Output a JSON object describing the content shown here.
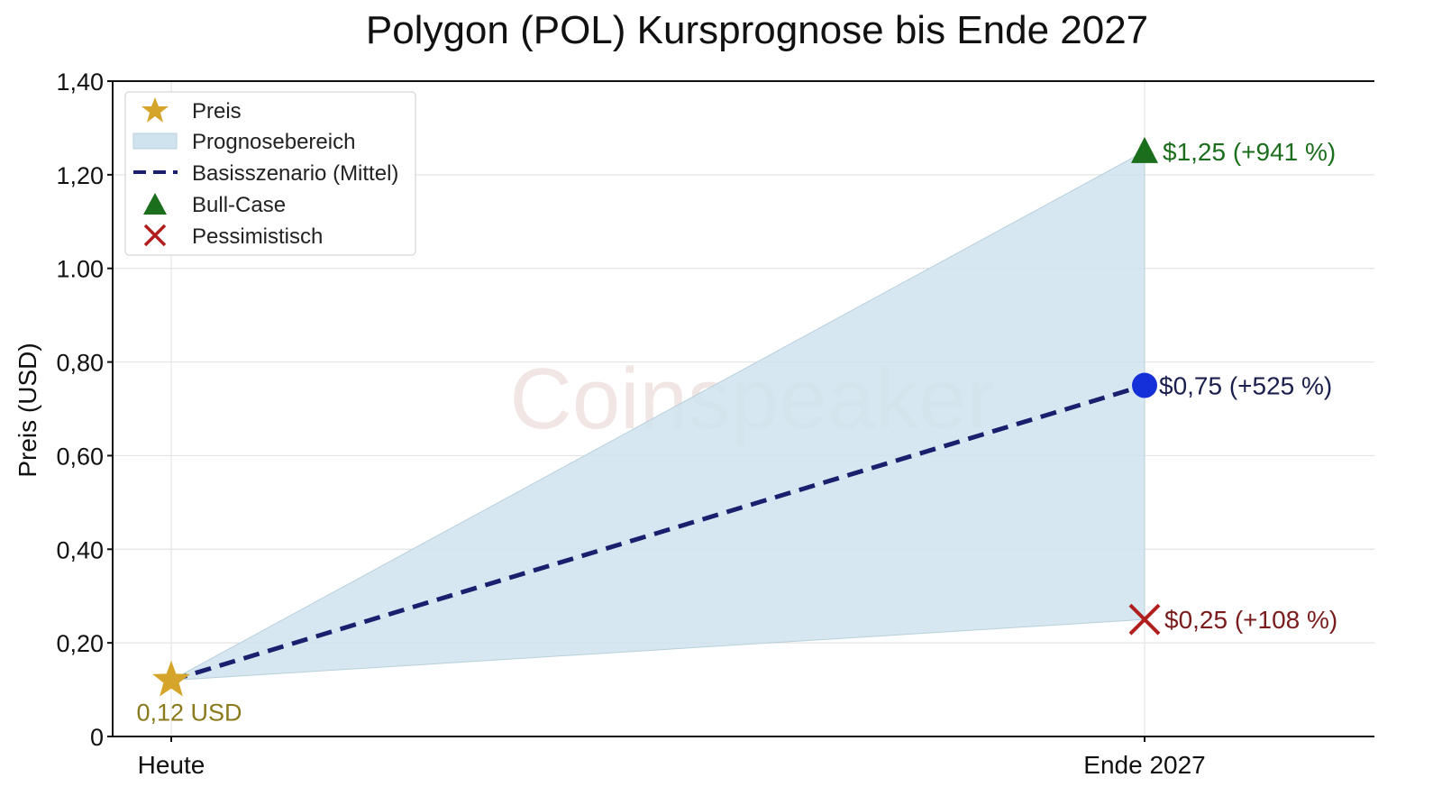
{
  "chart_data": {
    "type": "line",
    "title": "Polygon (POL) Kursprognose bis Ende 2027",
    "xlabel": "",
    "ylabel": "Preis (USD)",
    "categories": [
      "Heute",
      "Ende 2027"
    ],
    "ylim": [
      0,
      1.4
    ],
    "yticks": [
      0,
      0.2,
      0.4,
      0.6,
      0.8,
      1.0,
      1.2,
      1.4
    ],
    "ytick_labels": [
      "0",
      "0,20",
      "0,40",
      "0,60",
      "0,80",
      "1.00",
      "1,20",
      "1,40"
    ],
    "grid": true,
    "legend_position": "top-left",
    "legend": [
      "Preis",
      "Prognosebereich",
      "Basisszenario (Mittel)",
      "Bull-Case",
      "Pessimistisch"
    ],
    "current_price": {
      "x": "Heute",
      "value": 0.12,
      "label": "0,12 USD"
    },
    "range": {
      "upper": [
        0.12,
        1.25
      ],
      "lower": [
        0.12,
        0.25
      ]
    },
    "series": [
      {
        "name": "Basisszenario (Mittel)",
        "values": [
          0.12,
          0.75
        ],
        "label": "$0,75 (+525 %)"
      },
      {
        "name": "Bull-Case",
        "values": [
          null,
          1.25
        ],
        "label": "$1,25 (+941 %)"
      },
      {
        "name": "Pessimistisch",
        "values": [
          null,
          0.25
        ],
        "label": "$0,25 (+108 %)"
      }
    ],
    "watermark": "Coinspeaker",
    "colors": {
      "price": "#d4a52a",
      "range": "#cfe3ee",
      "base": "#1a1f6e",
      "base_marker": "#1530d8",
      "bull": "#1b6e1b",
      "bear": "#b01e1e",
      "bear_label": "#7a1c1c",
      "price_label": "#8a7a1c"
    }
  }
}
